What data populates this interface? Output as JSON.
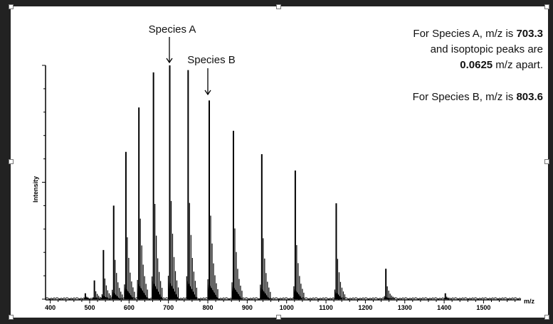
{
  "chart_data": {
    "type": "line",
    "xlabel": "m/z",
    "ylabel": "Intensity",
    "xlim": [
      388,
      1595
    ],
    "ylim": [
      0,
      100
    ],
    "x_ticks": [
      400,
      500,
      600,
      700,
      800,
      900,
      1000,
      1100,
      1200,
      1300,
      1400,
      1500
    ],
    "peaks": [
      {
        "mz": 489,
        "intensity": 2.5
      },
      {
        "mz": 512,
        "intensity": 8
      },
      {
        "mz": 535,
        "intensity": 21
      },
      {
        "mz": 561,
        "intensity": 40
      },
      {
        "mz": 592,
        "intensity": 63
      },
      {
        "mz": 625,
        "intensity": 82
      },
      {
        "mz": 662,
        "intensity": 97
      },
      {
        "mz": 703.3,
        "intensity": 100
      },
      {
        "mz": 750,
        "intensity": 98
      },
      {
        "mz": 803.6,
        "intensity": 85
      },
      {
        "mz": 865,
        "intensity": 72
      },
      {
        "mz": 937,
        "intensity": 62
      },
      {
        "mz": 1022,
        "intensity": 55
      },
      {
        "mz": 1126,
        "intensity": 41
      },
      {
        "mz": 1252,
        "intensity": 13
      },
      {
        "mz": 1403,
        "intensity": 2.5
      }
    ],
    "annotations": [
      {
        "label": "Species A",
        "mz": 703.3
      },
      {
        "label": "Species B",
        "mz": 803.6
      }
    ]
  },
  "notes": {
    "line1_pre": "For Species A, m/z is ",
    "line1_val": "703.3",
    "line2": "and isoptopic peaks are",
    "line3_val": "0.0625",
    "line3_post": " m/z apart.",
    "line4_pre": "For Species B, m/z is ",
    "line4_val": "803.6"
  }
}
